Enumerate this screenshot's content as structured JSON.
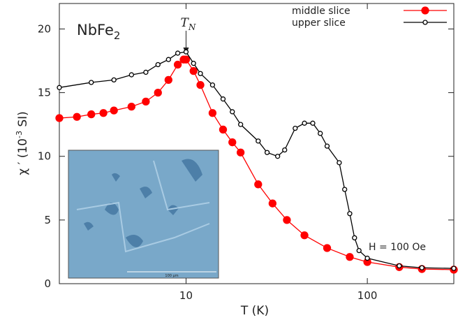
{
  "chart_data": {
    "type": "line",
    "title": {
      "text": "NbFe",
      "sub": "2"
    },
    "x_label": "T (K)",
    "y_label": {
      "pre": "χ ′ (10",
      "sup": "-3",
      "post": " SI)"
    },
    "x_scale": "log",
    "xlim": [
      2,
      300
    ],
    "xticks": [
      10,
      100
    ],
    "ylim": [
      0,
      22
    ],
    "yticks": [
      0,
      5,
      10,
      15,
      20
    ],
    "legend": "upper right",
    "annotations": {
      "transition": {
        "text": "T",
        "sub": "N",
        "x": 10
      },
      "field": "H = 100 Oe",
      "inset_scale": "100 μm"
    },
    "series": [
      {
        "name": "middle slice",
        "color": "#ff0000",
        "marker": "filled",
        "x": [
          2,
          2.5,
          3,
          3.5,
          4,
          5,
          6,
          7,
          8,
          9,
          9.7,
          10,
          11,
          12,
          14,
          16,
          18,
          20,
          25,
          30,
          36,
          45,
          60,
          80,
          100,
          150,
          200,
          300
        ],
        "values": [
          13.0,
          13.1,
          13.3,
          13.4,
          13.6,
          13.9,
          14.3,
          15.0,
          16.0,
          17.2,
          17.6,
          17.6,
          16.7,
          15.6,
          13.4,
          12.1,
          11.1,
          10.3,
          7.8,
          6.3,
          5.0,
          3.8,
          2.8,
          2.1,
          1.7,
          1.3,
          1.15,
          1.1
        ]
      },
      {
        "name": "upper slice",
        "color": "#000000",
        "marker": "open",
        "x": [
          2,
          3,
          4,
          5,
          6,
          7,
          8,
          9,
          10,
          11,
          12,
          14,
          16,
          18,
          20,
          25,
          28,
          32,
          35,
          40,
          45,
          50,
          55,
          60,
          70,
          75,
          80,
          85,
          90,
          100,
          150,
          200,
          300
        ],
        "values": [
          15.4,
          15.8,
          16.0,
          16.4,
          16.6,
          17.2,
          17.6,
          18.1,
          18.2,
          17.3,
          16.5,
          15.6,
          14.5,
          13.5,
          12.5,
          11.2,
          10.3,
          10.0,
          10.5,
          12.2,
          12.6,
          12.6,
          11.8,
          10.8,
          9.5,
          7.4,
          5.5,
          3.6,
          2.6,
          2.0,
          1.4,
          1.25,
          1.2
        ]
      }
    ]
  }
}
